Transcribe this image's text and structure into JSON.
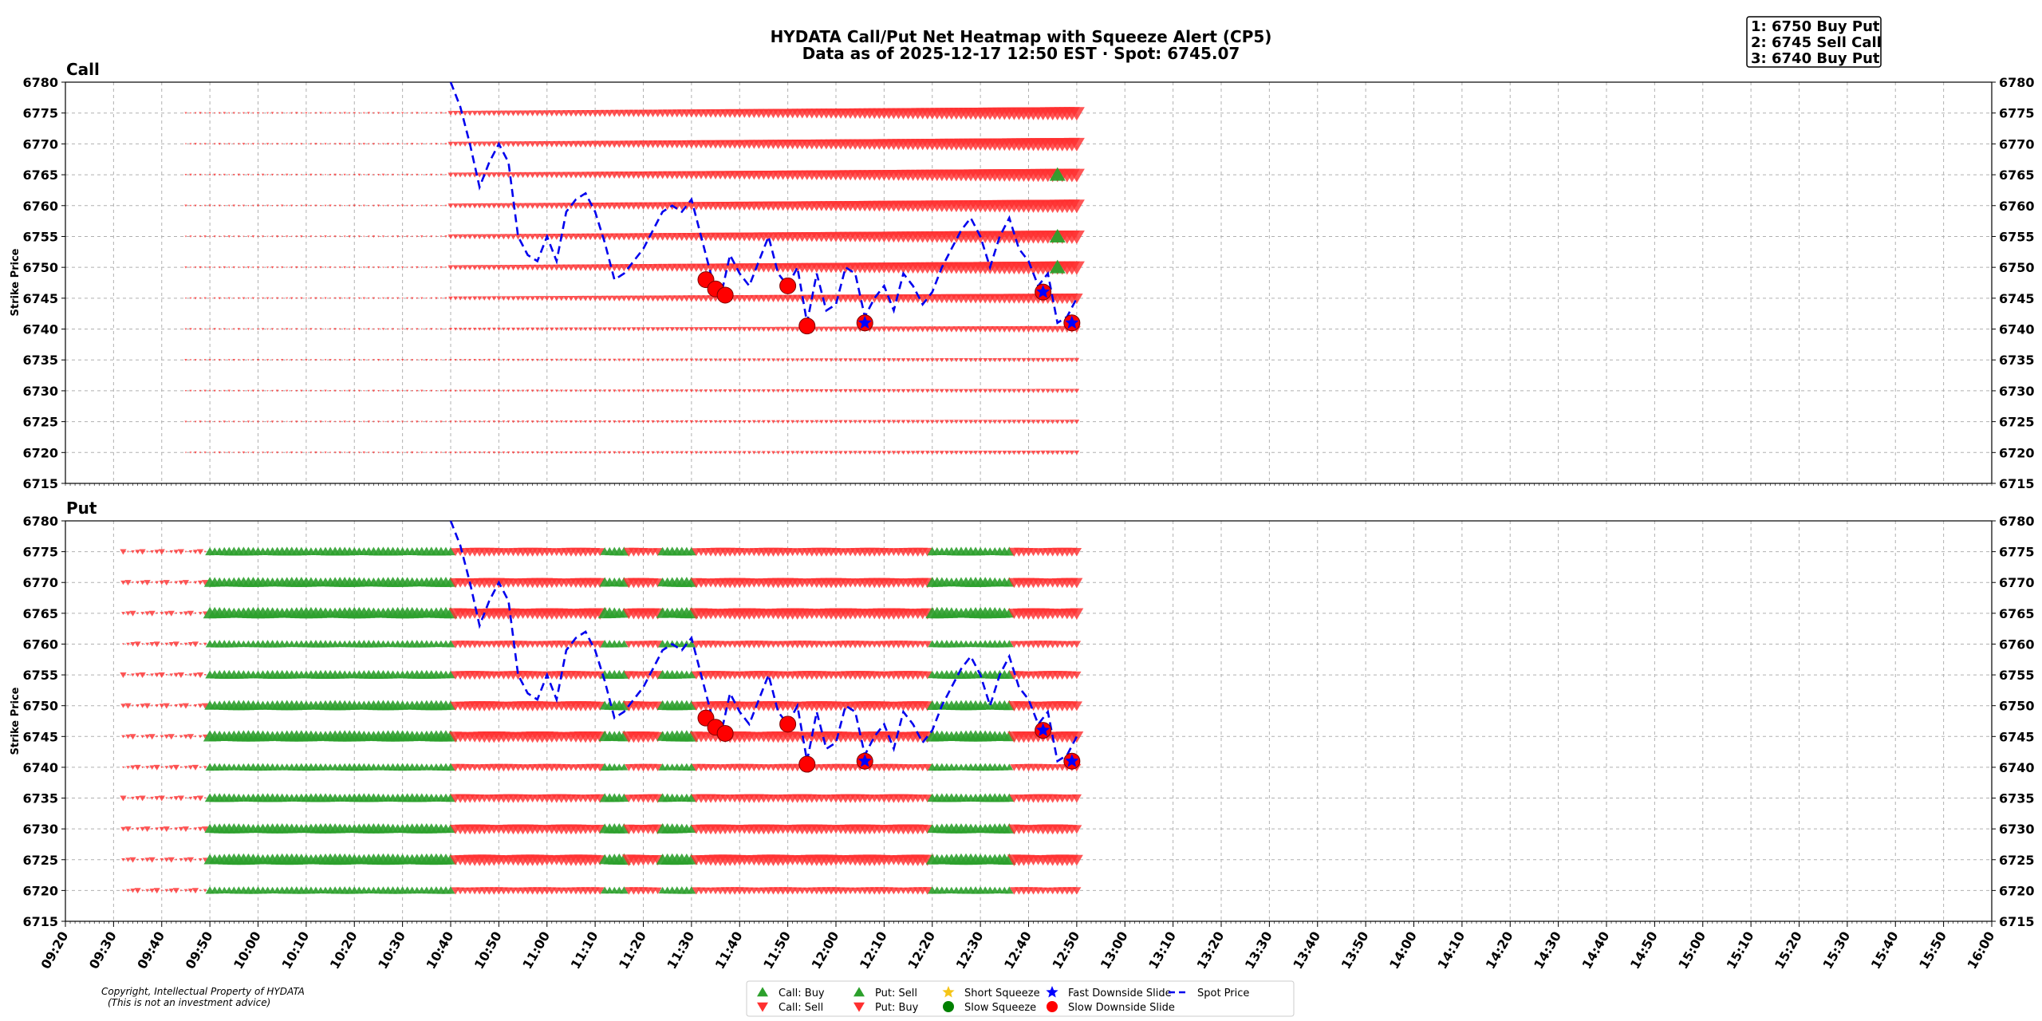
{
  "header": {
    "title_line1": "HYDATA Call/Put Net Heatmap with Squeeze Alert (CP5)",
    "title_line2": "Data as of 2025-12-17 12:50 EST · Spot: 6745.07"
  },
  "top_levels": [
    "1: 6750 Buy Put",
    "2: 6745 Sell Call",
    "3: 6740 Buy Put"
  ],
  "footer": {
    "copyright": "Copyright, Intellectual Property of HYDATA",
    "disclaimer": "(This is not an investment advice)"
  },
  "colors": {
    "green": "#2ca02c",
    "red": "#ff3030",
    "spot": "#0000ee",
    "short_squeeze": "#f5c518",
    "slow_squeeze": "#008000",
    "fast_slide": "#0000ff",
    "slow_slide": "#ff0000"
  },
  "legend": [
    {
      "label": "Call: Buy",
      "icon": "green-triangle-up-icon"
    },
    {
      "label": "Call: Sell",
      "icon": "red-triangle-down-icon"
    },
    {
      "label": "Put: Sell",
      "icon": "green-triangle-up-icon"
    },
    {
      "label": "Put: Buy",
      "icon": "red-triangle-down-icon"
    },
    {
      "label": "Short Squeeze",
      "icon": "yellow-star-icon"
    },
    {
      "label": "Slow Squeeze",
      "icon": "green-circle-icon"
    },
    {
      "label": "Fast Downside Slide",
      "icon": "blue-star-icon"
    },
    {
      "label": "Slow Downside Slide",
      "icon": "red-circle-icon"
    },
    {
      "label": "Spot Price",
      "icon": "blue-dashed-line-icon"
    }
  ],
  "chart_data": {
    "type": "scatter",
    "x_ticks": [
      "09:20",
      "09:30",
      "09:40",
      "09:50",
      "10:00",
      "10:10",
      "10:20",
      "10:30",
      "10:40",
      "10:50",
      "11:00",
      "11:10",
      "11:20",
      "11:30",
      "11:40",
      "11:50",
      "12:00",
      "12:10",
      "12:20",
      "12:30",
      "12:40",
      "12:50",
      "13:00",
      "13:10",
      "13:20",
      "13:30",
      "13:40",
      "13:50",
      "14:00",
      "14:10",
      "14:20",
      "14:30",
      "14:40",
      "14:50",
      "15:00",
      "15:10",
      "15:20",
      "15:30",
      "15:40",
      "15:50",
      "16:00"
    ],
    "y_ticks": [
      6715,
      6720,
      6725,
      6730,
      6735,
      6740,
      6745,
      6750,
      6755,
      6760,
      6765,
      6770,
      6775,
      6780
    ],
    "ylim": [
      6715,
      6780
    ],
    "ylabel": "Strike Price",
    "strikes": [
      6720,
      6725,
      6730,
      6735,
      6740,
      6745,
      6750,
      6755,
      6760,
      6765,
      6770,
      6775
    ],
    "panels": [
      {
        "title": "Call",
        "heat_start": "09:45",
        "heat_end": "12:50",
        "green_markers": [
          {
            "time": "12:46",
            "strike": 6765
          },
          {
            "time": "12:46",
            "strike": 6755
          },
          {
            "time": "12:46",
            "strike": 6750
          }
        ]
      },
      {
        "title": "Put",
        "heat_start": "09:32",
        "heat_end": "12:50",
        "green_zones": [
          [
            "09:50",
            "10:40"
          ],
          [
            "11:12",
            "11:16"
          ],
          [
            "11:24",
            "11:30"
          ],
          [
            "12:20",
            "12:36"
          ]
        ]
      }
    ],
    "spot_series": {
      "name": "Spot Price",
      "points": [
        [
          "10:40",
          6780
        ],
        [
          "10:42",
          6776
        ],
        [
          "10:44",
          6770
        ],
        [
          "10:46",
          6763
        ],
        [
          "10:48",
          6767
        ],
        [
          "10:50",
          6770
        ],
        [
          "10:52",
          6767
        ],
        [
          "10:54",
          6755
        ],
        [
          "10:56",
          6752
        ],
        [
          "10:58",
          6751
        ],
        [
          "11:00",
          6755
        ],
        [
          "11:02",
          6751
        ],
        [
          "11:04",
          6759
        ],
        [
          "11:06",
          6761
        ],
        [
          "11:08",
          6762
        ],
        [
          "11:10",
          6759
        ],
        [
          "11:12",
          6754
        ],
        [
          "11:14",
          6748
        ],
        [
          "11:16",
          6749
        ],
        [
          "11:18",
          6751
        ],
        [
          "11:20",
          6753
        ],
        [
          "11:22",
          6756
        ],
        [
          "11:24",
          6759
        ],
        [
          "11:26",
          6760
        ],
        [
          "11:28",
          6759
        ],
        [
          "11:30",
          6761
        ],
        [
          "11:32",
          6755
        ],
        [
          "11:34",
          6749
        ],
        [
          "11:36",
          6745
        ],
        [
          "11:38",
          6752
        ],
        [
          "11:40",
          6749
        ],
        [
          "11:42",
          6747
        ],
        [
          "11:44",
          6751
        ],
        [
          "11:46",
          6755
        ],
        [
          "11:48",
          6749
        ],
        [
          "11:50",
          6747
        ],
        [
          "11:52",
          6750
        ],
        [
          "11:54",
          6741
        ],
        [
          "11:56",
          6749
        ],
        [
          "11:58",
          6743
        ],
        [
          "12:00",
          6744
        ],
        [
          "12:02",
          6750
        ],
        [
          "12:04",
          6749
        ],
        [
          "12:06",
          6742
        ],
        [
          "12:08",
          6745
        ],
        [
          "12:10",
          6747
        ],
        [
          "12:12",
          6743
        ],
        [
          "12:14",
          6749
        ],
        [
          "12:16",
          6747
        ],
        [
          "12:18",
          6744
        ],
        [
          "12:20",
          6746
        ],
        [
          "12:22",
          6750
        ],
        [
          "12:24",
          6753
        ],
        [
          "12:26",
          6756
        ],
        [
          "12:28",
          6758
        ],
        [
          "12:30",
          6755
        ],
        [
          "12:32",
          6750
        ],
        [
          "12:34",
          6755
        ],
        [
          "12:36",
          6758
        ],
        [
          "12:38",
          6753
        ],
        [
          "12:40",
          6751
        ],
        [
          "12:42",
          6747
        ],
        [
          "12:44",
          6749
        ],
        [
          "12:46",
          6741
        ],
        [
          "12:48",
          6742
        ],
        [
          "12:50",
          6745
        ]
      ]
    },
    "slow_downside_slide": [
      {
        "time": "11:33",
        "price": 6748
      },
      {
        "time": "11:35",
        "price": 6746.5
      },
      {
        "time": "11:37",
        "price": 6745.5
      },
      {
        "time": "11:50",
        "price": 6747
      },
      {
        "time": "11:54",
        "price": 6740.5
      },
      {
        "time": "12:06",
        "price": 6741
      },
      {
        "time": "12:43",
        "price": 6746
      },
      {
        "time": "12:49",
        "price": 6741
      }
    ],
    "fast_downside_slide": [
      {
        "time": "12:06",
        "price": 6741
      },
      {
        "time": "12:43",
        "price": 6746
      },
      {
        "time": "12:49",
        "price": 6741
      }
    ],
    "short_squeeze": [],
    "slow_squeeze": []
  }
}
